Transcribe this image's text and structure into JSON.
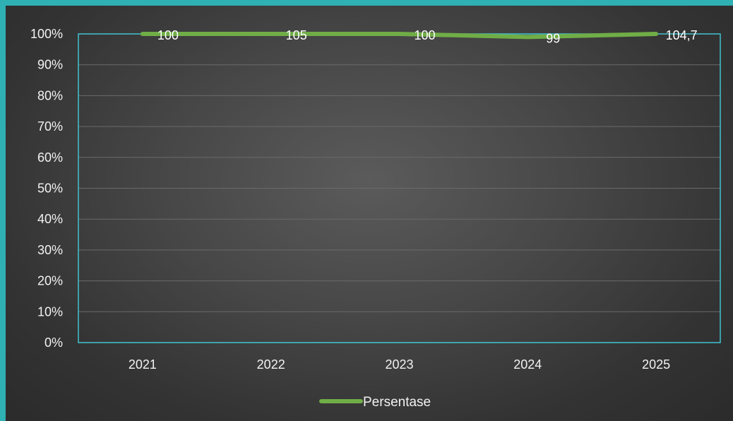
{
  "chart_data": {
    "type": "line",
    "categories": [
      "2021",
      "2022",
      "2023",
      "2024",
      "2025"
    ],
    "series": [
      {
        "name": "Persentase",
        "values": [
          100,
          105,
          100,
          99,
          104.7
        ],
        "labels": [
          "100",
          "105",
          "100",
          "99",
          "104,7"
        ],
        "color": "#70ad47"
      }
    ],
    "y_ticks": [
      "0%",
      "10%",
      "20%",
      "30%",
      "40%",
      "50%",
      "60%",
      "70%",
      "80%",
      "90%",
      "100%"
    ],
    "ylim": [
      0,
      100
    ],
    "grid": true,
    "legend_position": "bottom",
    "colors": {
      "frame_border": "#2fb0b3",
      "plot_border": "#41c4d0",
      "gridline": "#6a6a6a",
      "text": "#f2f2f2"
    }
  }
}
